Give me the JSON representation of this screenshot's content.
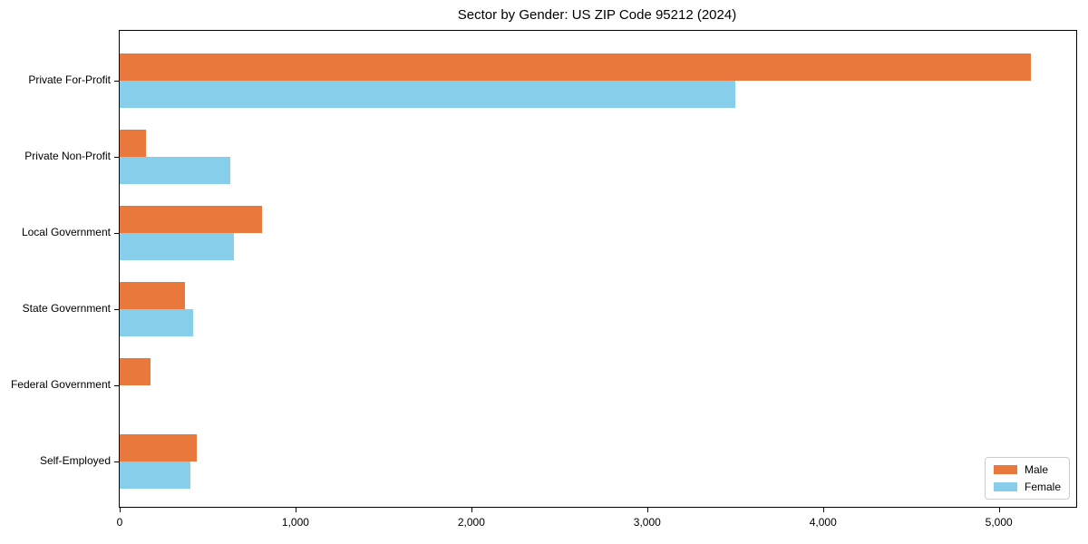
{
  "chart_data": {
    "type": "bar",
    "orientation": "horizontal",
    "title": "Sector by Gender: US ZIP Code 95212 (2024)",
    "categories": [
      "Private For-Profit",
      "Private Non-Profit",
      "Local Government",
      "State Government",
      "Federal Government",
      "Self-Employed"
    ],
    "series": [
      {
        "name": "Male",
        "color": "#e8783c",
        "values": [
          5180,
          150,
          810,
          370,
          175,
          440
        ]
      },
      {
        "name": "Female",
        "color": "#87ceeb",
        "values": [
          3500,
          630,
          650,
          420,
          0,
          400
        ]
      }
    ],
    "xlabel": "",
    "ylabel": "",
    "xlim": [
      0,
      5440
    ],
    "xticks": [
      0,
      1000,
      2000,
      3000,
      4000,
      5000
    ],
    "xtick_labels": [
      "0",
      "1,000",
      "2,000",
      "3,000",
      "4,000",
      "5,000"
    ],
    "grid": false,
    "legend": {
      "position": "lower right"
    }
  }
}
